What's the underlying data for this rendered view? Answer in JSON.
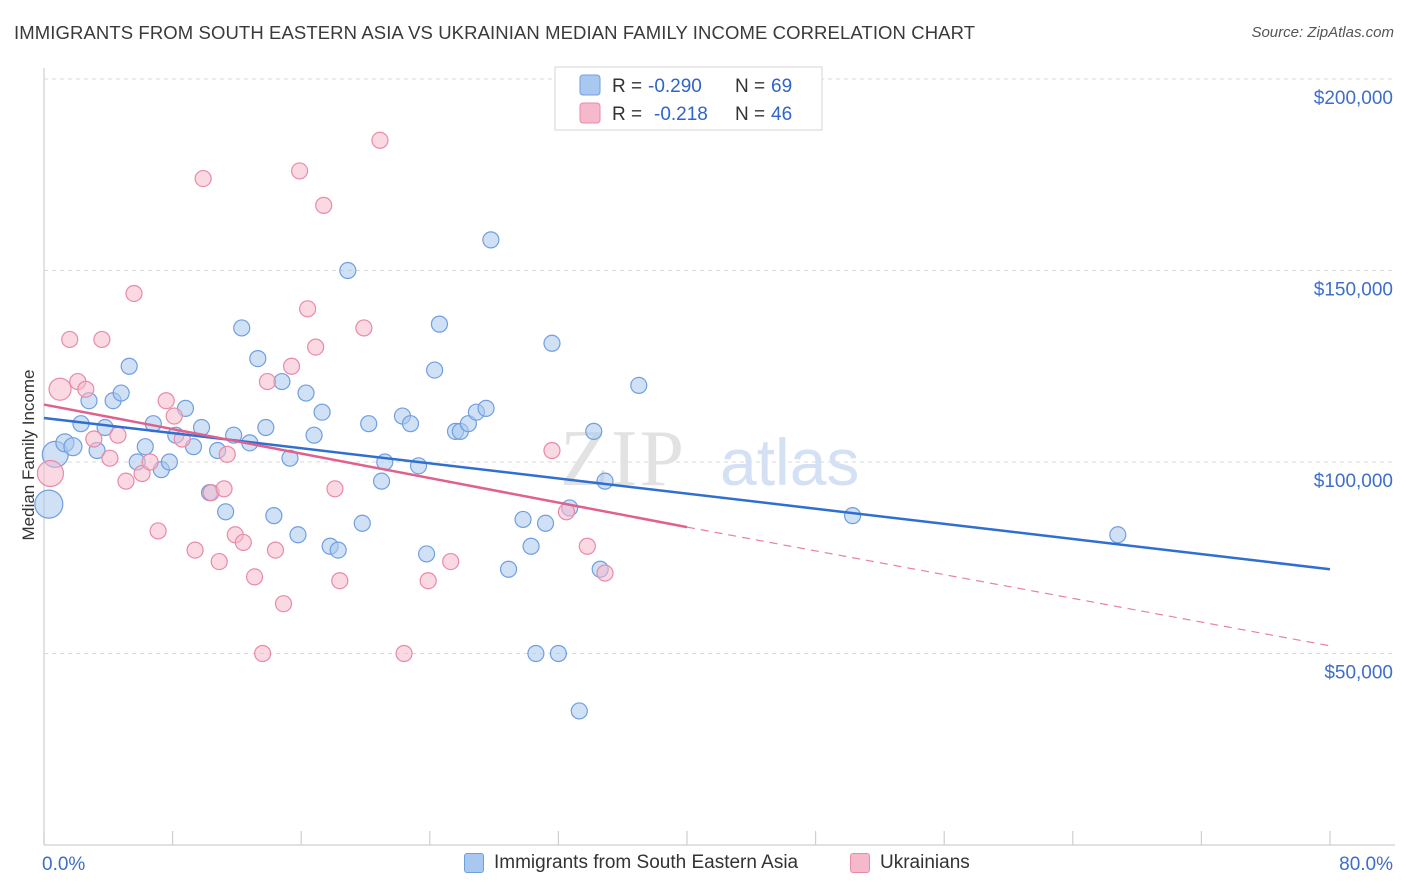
{
  "title": "IMMIGRANTS FROM SOUTH EASTERN ASIA VS UKRAINIAN MEDIAN FAMILY INCOME CORRELATION CHART",
  "source": "Source: ZipAtlas.com",
  "watermark": {
    "zip": "ZIP",
    "atlas": "atlas"
  },
  "colors": {
    "blue_fill": "#a9c8ef",
    "blue_stroke": "#6f9fe0",
    "blue_line": "#2f6fd0",
    "pink_fill": "#f6b9cc",
    "pink_stroke": "#e98aa8",
    "pink_line": "#e0608e",
    "axis_label": "#3d6ec9",
    "grid": "#d9d9d9"
  },
  "legend": {
    "rows": [
      {
        "r_label": "R =",
        "r_value": "-0.290",
        "n_label": "N =",
        "n_value": "69"
      },
      {
        "r_label": "R =",
        "r_value": "-0.218",
        "n_label": "N =",
        "n_value": "46"
      }
    ]
  },
  "bottom_legend": {
    "series1": "Immigrants from South Eastern Asia",
    "series2": "Ukrainians"
  },
  "chart_data": {
    "type": "scatter",
    "ylabel": "Median Family Income",
    "xlim": [
      0,
      80
    ],
    "ylim": [
      0,
      200000
    ],
    "x_tick_labels": [
      "0.0%",
      "80.0%"
    ],
    "y_ticks": [
      {
        "value": 50000,
        "label": "$50,000"
      },
      {
        "value": 100000,
        "label": "$100,000"
      },
      {
        "value": 150000,
        "label": "$150,000"
      },
      {
        "value": 200000,
        "label": "$200,000"
      }
    ],
    "grid": true,
    "legend_position": "top-center",
    "series": [
      {
        "name": "Immigrants from South Eastern Asia",
        "color": "#a9c8ef",
        "trend": {
          "x": [
            0,
            80
          ],
          "y": [
            111500,
            72000
          ]
        },
        "points": [
          [
            0.3,
            89000,
            28
          ],
          [
            0.7,
            102000,
            26
          ],
          [
            1.3,
            105000,
            18
          ],
          [
            1.8,
            104000,
            18
          ],
          [
            2.3,
            110000,
            16
          ],
          [
            2.8,
            116000,
            16
          ],
          [
            3.3,
            103000,
            16
          ],
          [
            3.8,
            109000,
            16
          ],
          [
            4.3,
            116000,
            16
          ],
          [
            4.8,
            118000,
            16
          ],
          [
            5.3,
            125000,
            16
          ],
          [
            5.8,
            100000,
            16
          ],
          [
            6.3,
            104000,
            16
          ],
          [
            6.8,
            110000,
            16
          ],
          [
            7.3,
            98000,
            16
          ],
          [
            7.8,
            100000,
            16
          ],
          [
            8.2,
            107000,
            16
          ],
          [
            8.8,
            114000,
            16
          ],
          [
            9.3,
            104000,
            16
          ],
          [
            9.8,
            109000,
            16
          ],
          [
            10.3,
            92000,
            16
          ],
          [
            10.8,
            103000,
            16
          ],
          [
            11.3,
            87000,
            16
          ],
          [
            11.8,
            107000,
            16
          ],
          [
            12.3,
            135000,
            16
          ],
          [
            12.8,
            105000,
            16
          ],
          [
            13.3,
            127000,
            16
          ],
          [
            13.8,
            109000,
            16
          ],
          [
            14.3,
            86000,
            16
          ],
          [
            14.8,
            121000,
            16
          ],
          [
            15.3,
            101000,
            16
          ],
          [
            15.8,
            81000,
            16
          ],
          [
            16.3,
            118000,
            16
          ],
          [
            16.8,
            107000,
            16
          ],
          [
            17.3,
            113000,
            16
          ],
          [
            17.8,
            78000,
            16
          ],
          [
            18.3,
            77000,
            16
          ],
          [
            18.9,
            150000,
            16
          ],
          [
            19.8,
            84000,
            16
          ],
          [
            20.2,
            110000,
            16
          ],
          [
            21.0,
            95000,
            16
          ],
          [
            21.2,
            100000,
            16
          ],
          [
            22.3,
            112000,
            16
          ],
          [
            22.8,
            110000,
            16
          ],
          [
            23.3,
            99000,
            16
          ],
          [
            23.8,
            76000,
            16
          ],
          [
            24.3,
            124000,
            16
          ],
          [
            24.6,
            136000,
            16
          ],
          [
            25.6,
            108000,
            16
          ],
          [
            25.9,
            108000,
            16
          ],
          [
            26.4,
            110000,
            16
          ],
          [
            26.9,
            113000,
            16
          ],
          [
            27.5,
            114000,
            16
          ],
          [
            27.8,
            158000,
            16
          ],
          [
            28.9,
            72000,
            16
          ],
          [
            29.8,
            85000,
            16
          ],
          [
            30.3,
            78000,
            16
          ],
          [
            30.6,
            50000,
            16
          ],
          [
            31.2,
            84000,
            16
          ],
          [
            31.6,
            131000,
            16
          ],
          [
            32.0,
            50000,
            16
          ],
          [
            32.7,
            88000,
            16
          ],
          [
            33.3,
            35000,
            16
          ],
          [
            34.2,
            108000,
            16
          ],
          [
            34.6,
            72000,
            16
          ],
          [
            34.9,
            95000,
            16
          ],
          [
            37.0,
            120000,
            16
          ],
          [
            50.3,
            86000,
            16
          ],
          [
            66.8,
            81000,
            16
          ]
        ]
      },
      {
        "name": "Ukrainians",
        "color": "#f6b9cc",
        "trend": {
          "x": [
            0,
            40
          ],
          "y": [
            115000,
            83000
          ]
        },
        "trend_extension": {
          "x": [
            40,
            80
          ],
          "y": [
            83000,
            52000
          ]
        },
        "points": [
          [
            0.4,
            97000,
            26
          ],
          [
            1.0,
            119000,
            22
          ],
          [
            1.6,
            132000,
            16
          ],
          [
            2.1,
            121000,
            16
          ],
          [
            2.6,
            119000,
            16
          ],
          [
            3.1,
            106000,
            16
          ],
          [
            3.6,
            132000,
            16
          ],
          [
            4.1,
            101000,
            16
          ],
          [
            4.6,
            107000,
            16
          ],
          [
            5.1,
            95000,
            16
          ],
          [
            5.6,
            144000,
            16
          ],
          [
            6.1,
            97000,
            16
          ],
          [
            6.6,
            100000,
            16
          ],
          [
            7.1,
            82000,
            16
          ],
          [
            7.6,
            116000,
            16
          ],
          [
            8.1,
            112000,
            16
          ],
          [
            8.6,
            106000,
            16
          ],
          [
            9.4,
            77000,
            16
          ],
          [
            9.9,
            174000,
            16
          ],
          [
            10.4,
            92000,
            16
          ],
          [
            10.9,
            74000,
            16
          ],
          [
            11.4,
            102000,
            16
          ],
          [
            11.9,
            81000,
            16
          ],
          [
            12.4,
            79000,
            16
          ],
          [
            13.1,
            70000,
            16
          ],
          [
            13.6,
            50000,
            16
          ],
          [
            13.9,
            121000,
            16
          ],
          [
            14.4,
            77000,
            16
          ],
          [
            14.9,
            63000,
            16
          ],
          [
            15.4,
            125000,
            16
          ],
          [
            15.9,
            176000,
            16
          ],
          [
            16.4,
            140000,
            16
          ],
          [
            16.9,
            130000,
            16
          ],
          [
            17.4,
            167000,
            16
          ],
          [
            18.1,
            93000,
            16
          ],
          [
            18.4,
            69000,
            16
          ],
          [
            19.9,
            135000,
            16
          ],
          [
            20.9,
            184000,
            16
          ],
          [
            22.4,
            50000,
            16
          ],
          [
            23.9,
            69000,
            16
          ],
          [
            25.3,
            74000,
            16
          ],
          [
            31.6,
            103000,
            16
          ],
          [
            32.5,
            87000,
            16
          ],
          [
            33.8,
            78000,
            16
          ],
          [
            34.9,
            71000,
            16
          ],
          [
            11.2,
            93000,
            16
          ]
        ]
      }
    ]
  }
}
